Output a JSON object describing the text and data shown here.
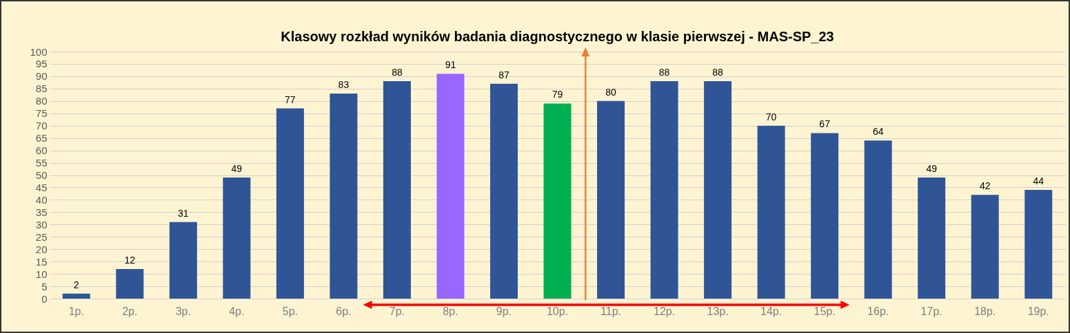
{
  "chart_data": {
    "type": "bar",
    "title": "Klasowy rozkład wyników badania diagnostycznego w klasie pierwszej - MAS-SP_23",
    "categories": [
      "1p.",
      "2p.",
      "3p.",
      "4p.",
      "5p.",
      "6p.",
      "7p.",
      "8p.",
      "9p.",
      "10p.",
      "11p.",
      "12p.",
      "13p.",
      "14p.",
      "15p.",
      "16p.",
      "17p.",
      "18p.",
      "19p."
    ],
    "values": [
      2,
      12,
      31,
      49,
      77,
      83,
      88,
      91,
      87,
      79,
      80,
      88,
      88,
      70,
      67,
      64,
      49,
      42,
      44
    ],
    "colors": [
      "#2f5597",
      "#2f5597",
      "#2f5597",
      "#2f5597",
      "#2f5597",
      "#2f5597",
      "#2f5597",
      "#9966ff",
      "#2f5597",
      "#00b050",
      "#2f5597",
      "#2f5597",
      "#2f5597",
      "#2f5597",
      "#2f5597",
      "#2f5597",
      "#2f5597",
      "#2f5597",
      "#2f5597"
    ],
    "ylim": [
      0,
      100
    ],
    "yticks": [
      0,
      5,
      10,
      15,
      20,
      25,
      30,
      35,
      40,
      45,
      50,
      55,
      60,
      65,
      70,
      75,
      80,
      85,
      90,
      95,
      100
    ],
    "grid": "y",
    "data_labels": true
  }
}
